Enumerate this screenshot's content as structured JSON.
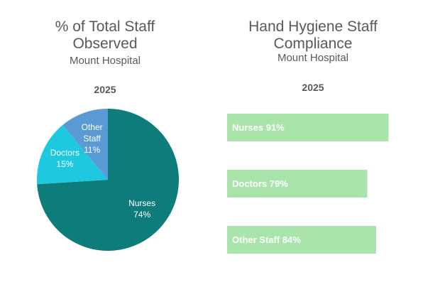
{
  "chart_data": [
    {
      "type": "pie",
      "title": "% of Total Staff Observed",
      "subtitle": "Mount Hospital",
      "heading": "2025",
      "categories": [
        "Nurses",
        "Doctors",
        "Other Staff"
      ],
      "values": [
        74,
        15,
        11
      ],
      "value_labels": [
        "74%",
        "15%",
        "11%"
      ],
      "colors": [
        "#0e7c7b",
        "#1ec8e0",
        "#5b9bd5"
      ]
    },
    {
      "type": "hbar",
      "title": "Hand Hygiene Staff Compliance",
      "subtitle": "Mount Hospital",
      "heading": "2025",
      "categories": [
        "Nurses",
        "Doctors",
        "Other Staff"
      ],
      "values": [
        91,
        79,
        84
      ],
      "value_labels": [
        "91%",
        "79%",
        "84%"
      ],
      "color": "#a9e5aa"
    }
  ]
}
